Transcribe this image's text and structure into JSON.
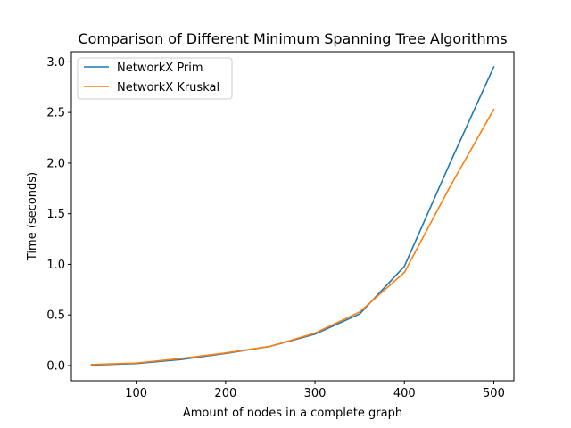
{
  "chart_data": {
    "type": "line",
    "title": "Comparison of Different Minimum Spanning Tree Algorithms",
    "xlabel": "Amount of nodes in a complete graph",
    "ylabel": "Time (seconds)",
    "xlim": [
      27.5,
      522.5
    ],
    "ylim": [
      -0.15,
      3.1
    ],
    "xticks": [
      100,
      200,
      300,
      400,
      500
    ],
    "xtick_labels": [
      "100",
      "200",
      "300",
      "400",
      "500"
    ],
    "yticks": [
      0.0,
      0.5,
      1.0,
      1.5,
      2.0,
      2.5,
      3.0
    ],
    "ytick_labels": [
      "0.0",
      "0.5",
      "1.0",
      "1.5",
      "2.0",
      "2.5",
      "3.0"
    ],
    "grid": false,
    "legend_position": "upper-left",
    "x": [
      50,
      100,
      150,
      200,
      250,
      300,
      350,
      400,
      450,
      500
    ],
    "series": [
      {
        "name": "NetworkX Prim",
        "color": "#1f77b4",
        "values": [
          0.005,
          0.02,
          0.06,
          0.12,
          0.19,
          0.31,
          0.51,
          0.98,
          1.98,
          2.95
        ]
      },
      {
        "name": "NetworkX Kruskal",
        "color": "#ff7f0e",
        "values": [
          0.01,
          0.025,
          0.07,
          0.125,
          0.19,
          0.32,
          0.53,
          0.92,
          1.75,
          2.53
        ]
      }
    ]
  }
}
